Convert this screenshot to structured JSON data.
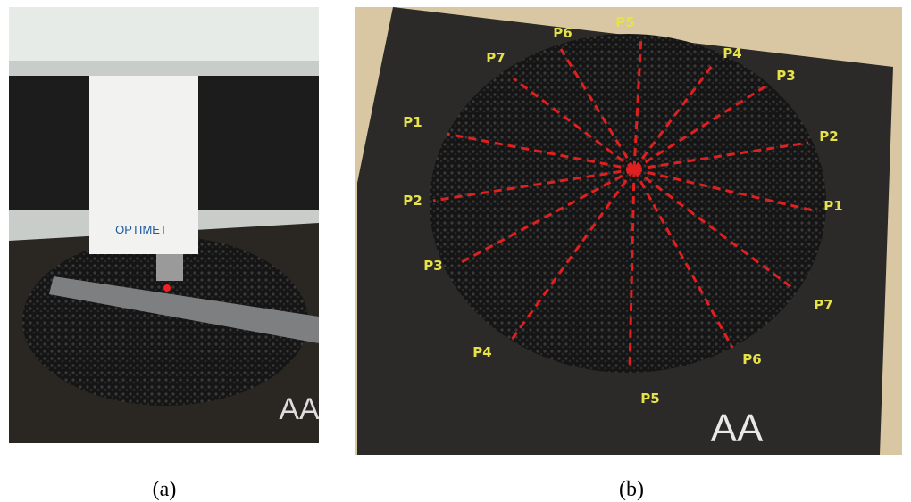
{
  "figure": {
    "panel_a": {
      "caption": "(a)",
      "device_label": "OPTIMET",
      "mat_text": "AA"
    },
    "panel_b": {
      "caption": "(b)",
      "mat_text": "AA",
      "labels": [
        "P6",
        "P5",
        "P4",
        "P3",
        "P7",
        "P1",
        "P2",
        "P2",
        "P1",
        "P3",
        "P7",
        "P4",
        "P6",
        "P5"
      ]
    }
  }
}
